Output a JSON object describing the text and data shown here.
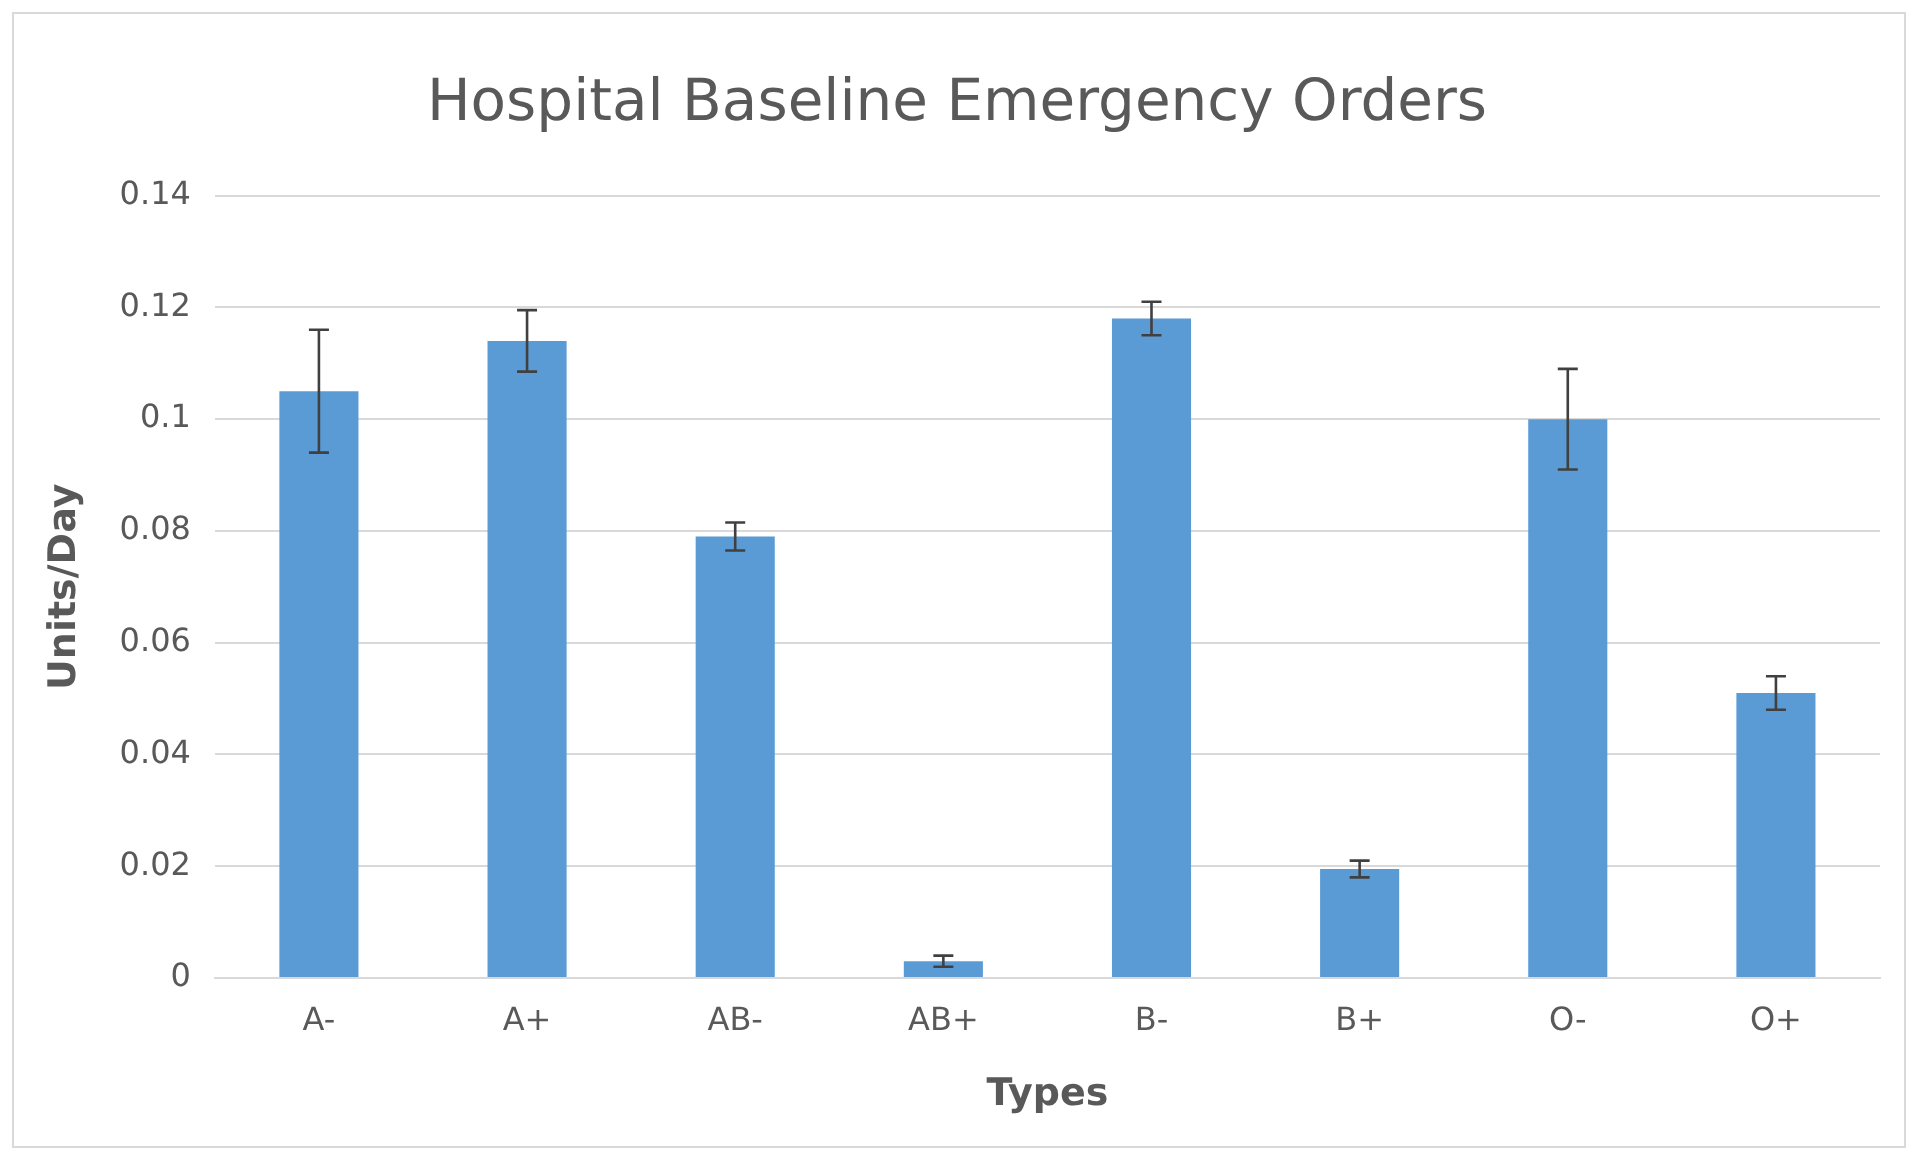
{
  "chart_data": {
    "type": "bar",
    "title": "Hospital Baseline Emergency Orders",
    "xlabel": "Types",
    "ylabel": "Units/Day",
    "categories": [
      "A-",
      "A+",
      "AB-",
      "AB+",
      "B-",
      "B+",
      "O-",
      "O+"
    ],
    "values": [
      0.105,
      0.114,
      0.079,
      0.003,
      0.118,
      0.0195,
      0.1,
      0.051
    ],
    "errors": [
      0.011,
      0.0055,
      0.0025,
      0.001,
      0.003,
      0.0015,
      0.009,
      0.003
    ],
    "color": "#5b9bd5",
    "ylim": [
      0,
      0.14
    ],
    "yticks": [
      0,
      0.02,
      0.04,
      0.06,
      0.08,
      0.1,
      0.12,
      0.14
    ],
    "grid": "y",
    "legend": false
  }
}
